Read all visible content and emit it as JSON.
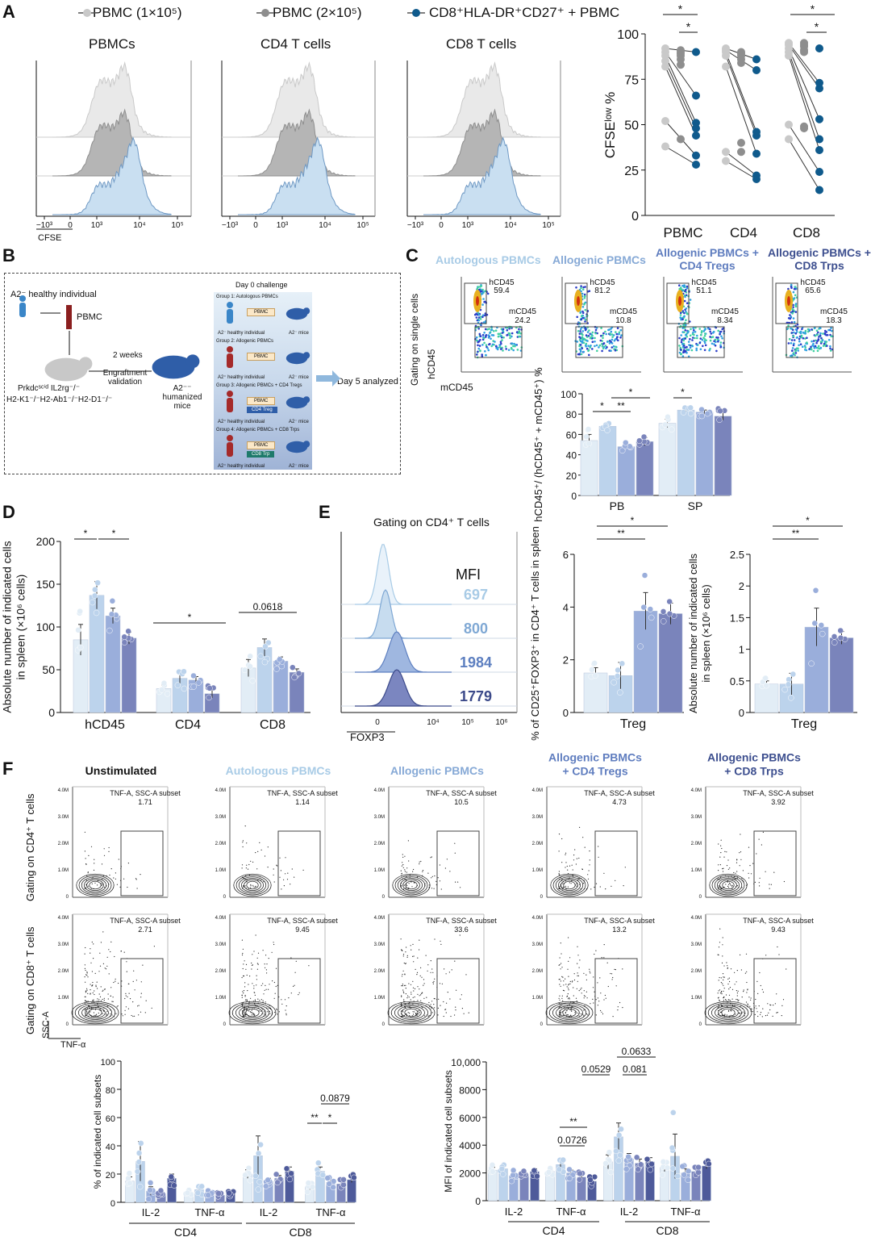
{
  "panels": {
    "A": "A",
    "B": "B",
    "C": "C",
    "D": "D",
    "E": "E",
    "F": "F"
  },
  "colors": {
    "g1": "#e2edf6",
    "g2": "#bcd3ec",
    "g3": "#9aaedb",
    "g4": "#7a84bb",
    "g5": "#4e5a9a",
    "pbmc1": "#c9c9c9",
    "pbmc2": "#8e8e8e",
    "trps": "#0f5a8c",
    "text_light": "#a8cbe6",
    "text_mid": "#86a9d6",
    "text_dark": "#4d63a3",
    "text_darker": "#39487f"
  },
  "panelA": {
    "legend": [
      "PBMC (1×10⁵)",
      "PBMC (2×10⁵)",
      "CD8⁺HLA-DR⁺CD27⁺ + PBMC"
    ],
    "hist_titles": [
      "PBMCs",
      "CD4 T cells",
      "CD8 T cells"
    ],
    "hist_ticks": [
      "−10³",
      "0",
      "10³",
      "10⁴",
      "10⁵"
    ],
    "xaxis_label": "CFSE"
  },
  "panelB": {
    "donor": "A2⁻ healthy individual",
    "pbmc": "PBMC",
    "weeks": "2 weeks",
    "engraft": "Engraftment validation",
    "strain1": "Prkdcˢᶜⁱᵈ IL2rg⁻/⁻",
    "strain2": "H2-K1⁻/⁻H2-Ab1⁻/⁻H2-D1⁻/⁻",
    "humanized": "A2⁻⁻ humanized mice",
    "day0": "Day 0 challenge",
    "day5": "Day 5 analyzed",
    "groups": [
      {
        "title": "Group 1: Autologous PBMCs",
        "box": "PBMC",
        "extra": "",
        "donor": "A2⁻ healthy individual",
        "mice": "A2⁻ mice"
      },
      {
        "title": "Group 2: Allogenic PBMCs",
        "box": "PBMC",
        "extra": "",
        "donor": "A2⁺ healthy individual",
        "mice": "A2⁻ mice"
      },
      {
        "title": "Group 3: Allogenic PBMCs + CD4 Tregs",
        "box": "PBMC",
        "extra": "CD4 Treg",
        "donor": "A2⁺ healthy individual",
        "mice": "A2⁻ mice"
      },
      {
        "title": "Group 4: Allogenic PBMCs + CD8 Trps",
        "box": "PBMC",
        "extra": "CD8 Trp",
        "donor": "A2⁺ healthy individual",
        "mice": "A2⁻ mice"
      }
    ]
  },
  "panelC": {
    "titles": [
      "Autologous PBMCs",
      "Allogenic PBMCs",
      "Allogenic PBMCs + CD4 Tregs",
      "Allogenic PBMCs + CD8 Trps"
    ],
    "side_label": "Gating on single cells",
    "yaxis": "hCD45",
    "xaxis": "mCD45",
    "gates": [
      {
        "h": "59.4",
        "m": "24.2"
      },
      {
        "h": "81.2",
        "m": "10.8"
      },
      {
        "h": "51.1",
        "m": "8.34"
      },
      {
        "h": "65.6",
        "m": "18.3"
      }
    ],
    "gate_h": "hCD45",
    "gate_m": "mCD45"
  },
  "panelE": {
    "title": "Gating on CD4⁺ T cells",
    "mfi_label": "MFI",
    "mfi": [
      "697",
      "800",
      "1984",
      "1779"
    ],
    "xaxis": "FOXP3",
    "ticks": [
      "0",
      "10⁴",
      "10⁵",
      "10⁶"
    ]
  },
  "panelF": {
    "titles": [
      "Unstimulated",
      "Autologous PBMCs",
      "Allogenic PBMCs",
      "Allogenic PBMCs + CD4 Tregs",
      "Allogenic PBMCs + CD8 Trps"
    ],
    "row_labels": [
      "Gating on CD4⁺ T cells",
      "Gating on CD8⁺ T cells"
    ],
    "gate_label": "TNF-A, SSC-A subset",
    "cd4": [
      "1.71",
      "1.14",
      "10.5",
      "4.73",
      "3.92"
    ],
    "cd8": [
      "2.71",
      "9.45",
      "33.6",
      "13.2",
      "9.43"
    ],
    "yticks": [
      "4.0M",
      "3.0M",
      "2.0M",
      "1.0M",
      "0"
    ],
    "yaxis": "SSC-A",
    "xaxis": "TNF-α"
  },
  "chart_data": [
    {
      "id": "A_dot",
      "type": "scatter",
      "ylabel": "CFSEˡᵒʷ %",
      "ylim": [
        0,
        100
      ],
      "yticks": [
        0,
        25,
        50,
        75,
        100
      ],
      "categories": [
        "PBMC",
        "CD4",
        "CD8"
      ],
      "series": [
        {
          "name": "PBMC (1×10⁵)",
          "values": [
            [
              38,
              52,
              82,
              85,
              88,
              90,
              92
            ],
            [
              30,
              35,
              82,
              88,
              90,
              91,
              92
            ],
            [
              42,
              50,
              88,
              90,
              92,
              94,
              95
            ]
          ]
        },
        {
          "name": "PBMC (2×10⁵)",
          "values": [
            [
              42,
              83,
              86,
              88,
              89,
              90,
              91
            ],
            [
              35,
              40,
              84,
              86,
              88,
              89,
              90
            ],
            [
              48,
              49,
              90,
              91,
              93,
              94,
              95
            ]
          ]
        },
        {
          "name": "CD8⁺HLA-DR⁺CD27⁺ + PBMC",
          "values": [
            [
              28,
              33,
              44,
              48,
              51,
              66,
              90
            ],
            [
              20,
              22,
              34,
              44,
              46,
              80,
              86
            ],
            [
              14,
              24,
              36,
              42,
              53,
              70,
              73,
              92
            ]
          ]
        }
      ],
      "sig": [
        "*",
        "*",
        "*",
        "*"
      ]
    },
    {
      "id": "C_bar",
      "type": "bar",
      "ylabel": "hCD45⁺/ (hCD45⁺ + mCD45⁺) %",
      "ylim": [
        0,
        100
      ],
      "yticks": [
        0,
        20,
        40,
        60,
        80,
        100
      ],
      "categories": [
        "PB",
        "SP"
      ],
      "series": [
        {
          "name": "Autologous PBMCs",
          "values": [
            54,
            71
          ],
          "err": [
            6,
            4
          ]
        },
        {
          "name": "Allogenic PBMCs",
          "values": [
            68,
            84
          ],
          "err": [
            3,
            2
          ]
        },
        {
          "name": "Allogenic PBMCs + CD4 Tregs",
          "values": [
            48,
            82
          ],
          "err": [
            2,
            2
          ]
        },
        {
          "name": "Allogenic PBMCs + CD8 Trps",
          "values": [
            53,
            78
          ],
          "err": [
            4,
            4
          ]
        }
      ],
      "sig": [
        "*",
        "**",
        "*",
        "*"
      ]
    },
    {
      "id": "D_bar",
      "type": "bar",
      "ylabel": "Absolute number of indicated cells in spleen (×10⁶ cells)",
      "ylim": [
        0,
        200
      ],
      "yticks": [
        0,
        50,
        100,
        150,
        200
      ],
      "categories": [
        "hCD45",
        "CD4",
        "CD8"
      ],
      "series": [
        {
          "name": "Autologous PBMCs",
          "values": [
            85,
            28,
            52
          ],
          "err": [
            18,
            4,
            10
          ]
        },
        {
          "name": "Allogenic PBMCs",
          "values": [
            137,
            40,
            76
          ],
          "err": [
            16,
            7,
            10
          ]
        },
        {
          "name": "Allogenic PBMCs + CD4 Tregs",
          "values": [
            113,
            38,
            60
          ],
          "err": [
            9,
            4,
            5
          ]
        },
        {
          "name": "Allogenic PBMCs + CD8 Trps",
          "values": [
            87,
            22,
            47
          ],
          "err": [
            7,
            5,
            4
          ]
        }
      ],
      "sig": [
        "*",
        "*",
        "*",
        "0.0618"
      ]
    },
    {
      "id": "E_bar1",
      "type": "bar",
      "ylabel": "% of CD25⁺FOXP3⁺ in CD4⁺ T cells in spleen",
      "ylim": [
        0,
        6
      ],
      "yticks": [
        0,
        2,
        4,
        6
      ],
      "categories": [
        "Treg"
      ],
      "series": [
        {
          "name": "Autologous PBMCs",
          "values": [
            1.5
          ],
          "err": [
            0.2
          ]
        },
        {
          "name": "Allogenic PBMCs",
          "values": [
            1.4
          ],
          "err": [
            0.5
          ]
        },
        {
          "name": "Allogenic PBMCs + CD4 Tregs",
          "values": [
            3.85
          ],
          "err": [
            0.7
          ]
        },
        {
          "name": "Allogenic PBMCs + CD8 Trps",
          "values": [
            3.75
          ],
          "err": [
            0.4
          ]
        }
      ],
      "sig": [
        "**",
        "*"
      ]
    },
    {
      "id": "E_bar2",
      "type": "bar",
      "ylabel": "Absolute number of indicated cells in spleen (×10⁶ cells)",
      "ylim": [
        0,
        2.5
      ],
      "yticks": [
        0,
        0.5,
        1.0,
        1.5,
        2.0,
        2.5
      ],
      "categories": [
        "Treg"
      ],
      "series": [
        {
          "name": "Autologous PBMCs",
          "values": [
            0.45
          ],
          "err": [
            0.05
          ]
        },
        {
          "name": "Allogenic PBMCs",
          "values": [
            0.45
          ],
          "err": [
            0.17
          ]
        },
        {
          "name": "Allogenic PBMCs + CD4 Tregs",
          "values": [
            1.35
          ],
          "err": [
            0.3
          ]
        },
        {
          "name": "Allogenic PBMCs + CD8 Trps",
          "values": [
            1.18
          ],
          "err": [
            0.1
          ]
        }
      ],
      "sig": [
        "**",
        "*"
      ]
    },
    {
      "id": "F_bar1",
      "type": "bar",
      "ylabel": "% of indicated cell subsets",
      "ylim": [
        0,
        100
      ],
      "yticks": [
        0,
        20,
        40,
        60,
        80,
        100
      ],
      "categories": [
        "IL-2",
        "TNF-α",
        "IL-2",
        "TNF-α"
      ],
      "groups": [
        "CD4",
        "CD8"
      ],
      "series": [
        {
          "name": "Unstimulated",
          "values": [
            15,
            7,
            20,
            11
          ],
          "err": [
            3,
            1,
            3,
            2
          ]
        },
        {
          "name": "Autologous PBMCs",
          "values": [
            29,
            9,
            33,
            22
          ],
          "err": [
            14,
            2,
            14,
            3
          ]
        },
        {
          "name": "Allogenic PBMCs",
          "values": [
            8,
            7,
            15,
            14
          ],
          "err": [
            3,
            1,
            2,
            2
          ]
        },
        {
          "name": "Allogenic PBMCs + CD4 Tregs",
          "values": [
            6,
            5,
            17,
            13
          ],
          "err": [
            2,
            1,
            2,
            2
          ]
        },
        {
          "name": "Allogenic PBMCs + CD8 Trps",
          "values": [
            17,
            6,
            22,
            16
          ],
          "err": [
            3,
            1,
            3,
            2
          ]
        }
      ],
      "sig": [
        "**",
        "*",
        "0.0879"
      ]
    },
    {
      "id": "F_bar2",
      "type": "bar",
      "ylabel": "MFI of indicated cell subsets",
      "ylim": [
        0,
        10000
      ],
      "yticks": [
        0,
        2000,
        4000,
        6000,
        8000,
        "10,000"
      ],
      "categories": [
        "IL-2",
        "TNF-α",
        "IL-2",
        "TNF-α"
      ],
      "groups": [
        "CD4",
        "CD8"
      ],
      "series": [
        {
          "name": "Unstimulated",
          "values": [
            2200,
            2100,
            2800,
            2400
          ],
          "err": [
            200,
            150,
            500,
            300
          ]
        },
        {
          "name": "Autologous PBMCs",
          "values": [
            2300,
            2600,
            4600,
            3200
          ],
          "err": [
            300,
            300,
            1000,
            1600
          ]
        },
        {
          "name": "Allogenic PBMCs",
          "values": [
            1800,
            2000,
            3000,
            2000
          ],
          "err": [
            200,
            200,
            400,
            300
          ]
        },
        {
          "name": "Allogenic PBMCs + CD4 Tregs",
          "values": [
            1900,
            1700,
            2700,
            2100
          ],
          "err": [
            200,
            200,
            300,
            200
          ]
        },
        {
          "name": "Allogenic PBMCs + CD8 Trps",
          "values": [
            2100,
            1400,
            2800,
            2500
          ],
          "err": [
            200,
            200,
            300,
            200
          ]
        }
      ],
      "sig": [
        "**",
        "0.0726",
        "0.0529",
        "0.081",
        "0.0633"
      ]
    }
  ]
}
